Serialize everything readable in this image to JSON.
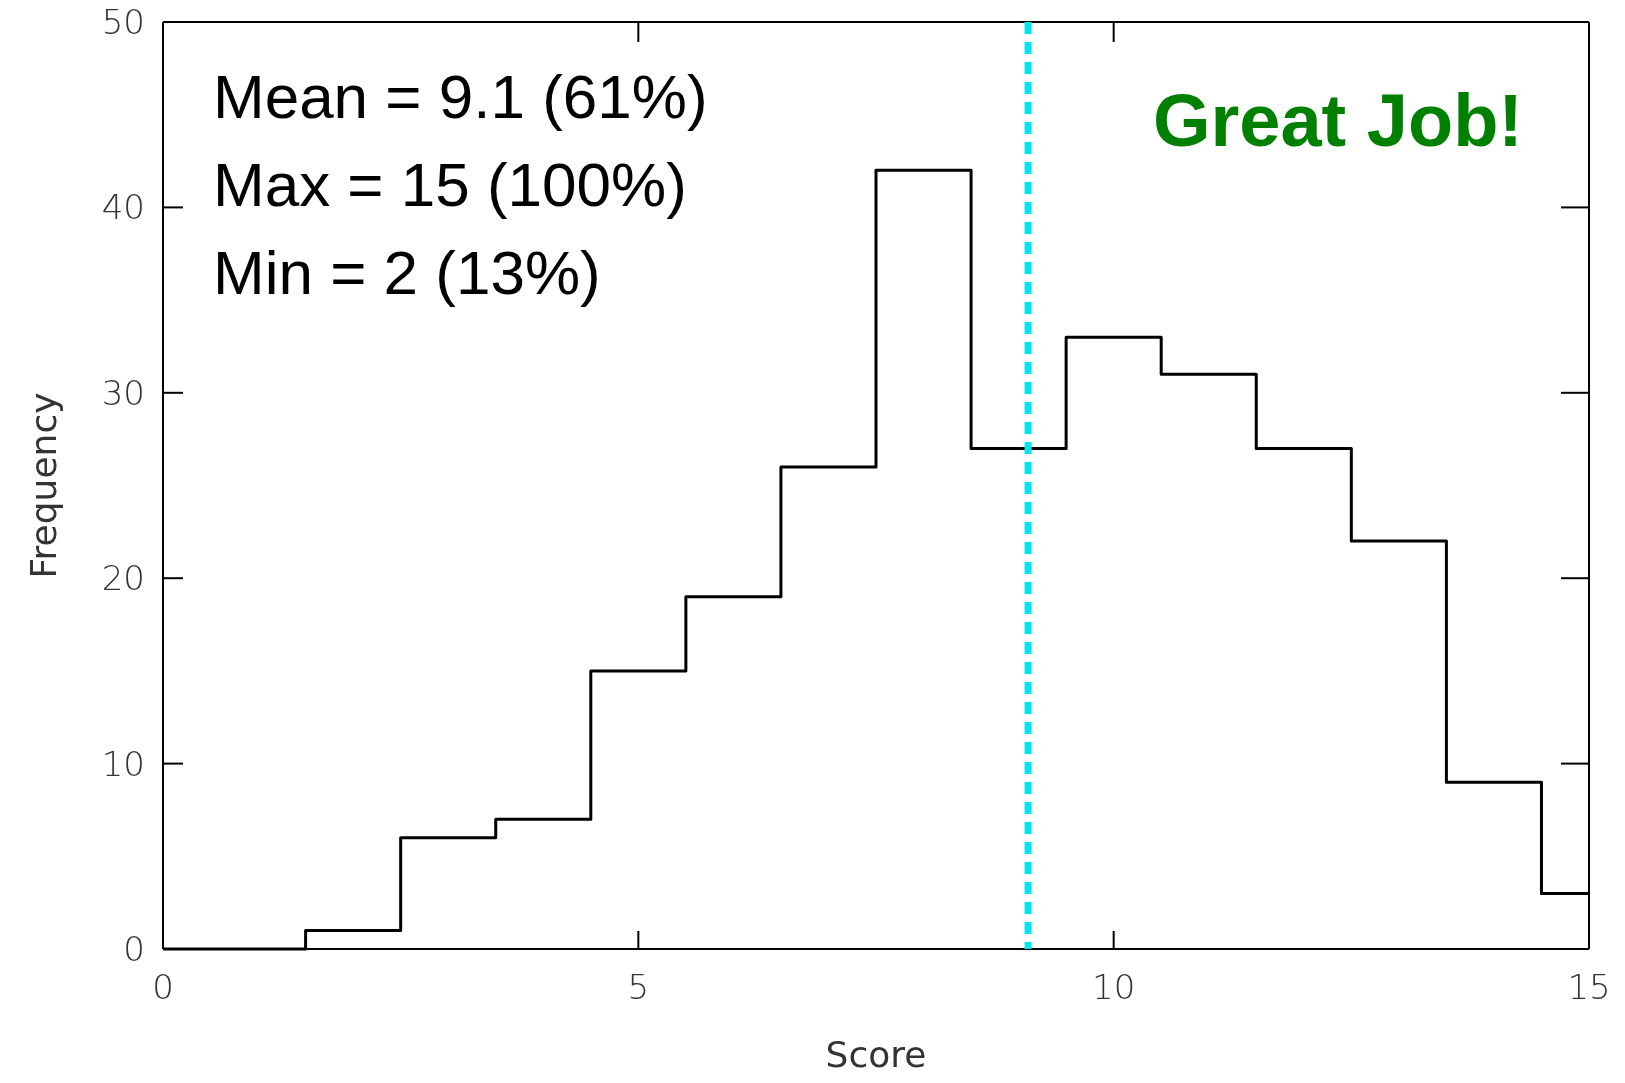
{
  "chart_data": {
    "type": "histogram",
    "xlabel": "Score",
    "ylabel": "Frequency",
    "bins": [
      0,
      0.5,
      1.5,
      2.5,
      3.5,
      4.5,
      5.5,
      6.5,
      7.5,
      8.5,
      9.5,
      10.5,
      11.5,
      12.5,
      13.5,
      14.5,
      15
    ],
    "values": [
      0,
      0,
      1,
      6,
      7,
      15,
      19,
      26,
      42,
      27,
      33,
      31,
      27,
      22,
      9,
      3
    ],
    "color": "#000000",
    "xlim": [
      0,
      15
    ],
    "ylim": [
      0,
      50
    ],
    "xticks": [
      0,
      5,
      10,
      15
    ],
    "yticks": [
      0,
      10,
      20,
      30,
      40,
      50
    ],
    "ref_lines": [
      {
        "axis": "x",
        "value": 9.1,
        "color": "#00e5ee",
        "line_style": "dashed"
      }
    ],
    "annotations": [
      "Mean = 9.1 (61%)",
      "Max = 15 (100%)",
      "Min = 2 (13%)",
      "Great Job!"
    ]
  }
}
